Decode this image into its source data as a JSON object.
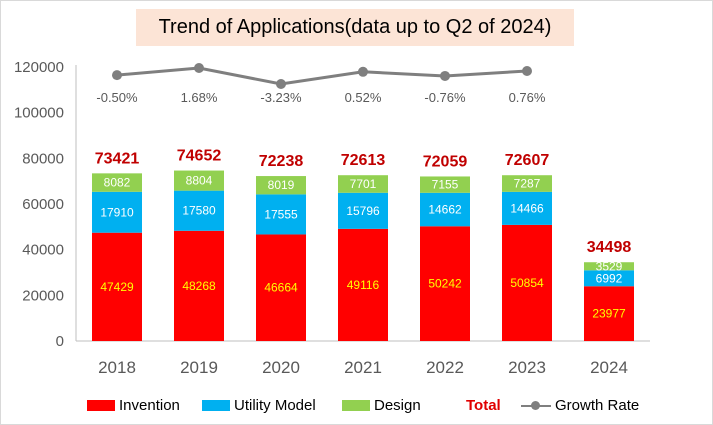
{
  "chart_data": {
    "type": "bar",
    "title": "Trend of Applications(data up to Q2 of 2024)",
    "categories": [
      "2018",
      "2019",
      "2020",
      "2021",
      "2022",
      "2023",
      "2024"
    ],
    "series": [
      {
        "name": "Invention",
        "values": [
          47429,
          48268,
          46664,
          49116,
          50242,
          50854,
          23977
        ],
        "color": "#ff0000",
        "label_color": "#ffff00"
      },
      {
        "name": "Utility Model",
        "values": [
          17910,
          17580,
          17555,
          15796,
          14662,
          14466,
          6992
        ],
        "color": "#00b0f0",
        "label_color": "#ffffff"
      },
      {
        "name": "Design",
        "values": [
          8082,
          8804,
          8019,
          7701,
          7155,
          7287,
          3529
        ],
        "color": "#92d050",
        "label_color": "#ffffff"
      }
    ],
    "totals": {
      "name": "Total",
      "values": [
        "73421",
        "74652",
        "72238",
        "72613",
        "72059",
        "72607",
        "34498"
      ],
      "color": "#c00000"
    },
    "growth_rate": {
      "name": "Growth Rate",
      "labels": [
        "-0.50%",
        "1.68%",
        "-3.23%",
        "0.52%",
        "-0.76%",
        "0.76%"
      ],
      "values_pct": [
        -0.5,
        1.68,
        -3.23,
        0.52,
        -0.76,
        0.76
      ],
      "color": "#7f7f7f"
    },
    "y_ticks": [
      "0",
      "20000",
      "40000",
      "60000",
      "80000",
      "100000",
      "120000"
    ],
    "ylim": [
      0,
      120000
    ],
    "stacked": true,
    "legend": "bottom",
    "grid": false
  }
}
